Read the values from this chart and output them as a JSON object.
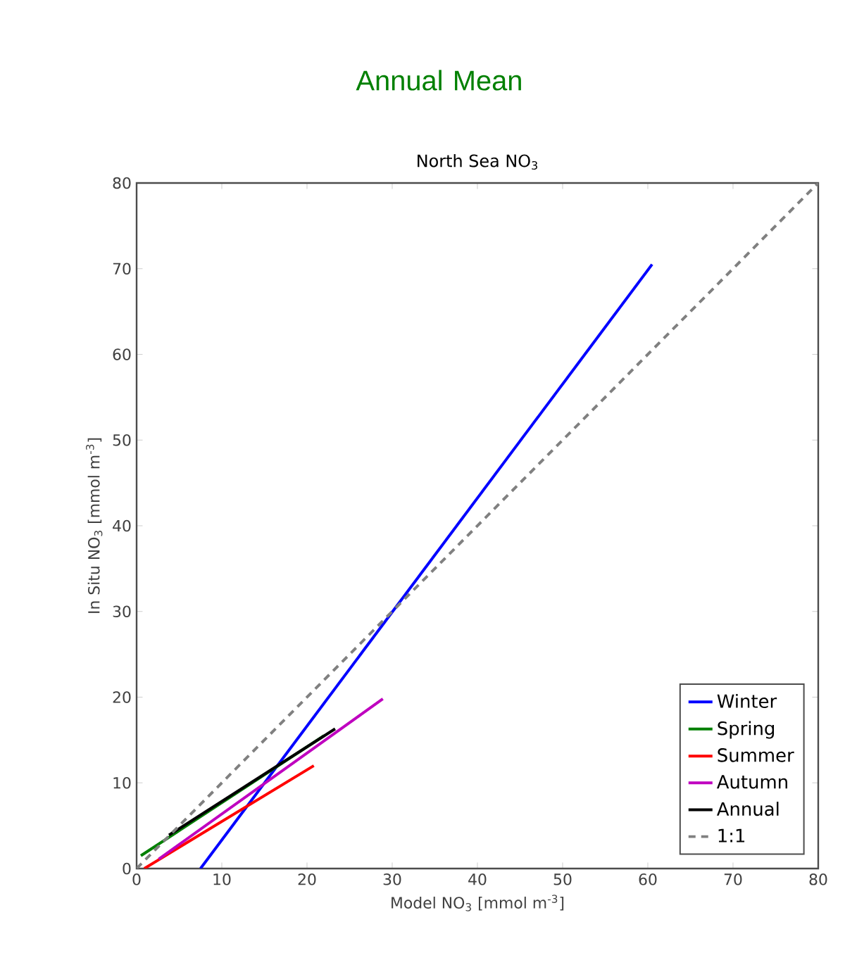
{
  "chart_data": {
    "type": "line",
    "title": "Annual Mean",
    "subtitle": "North Sea NO$_{3}$",
    "xlabel": "Model NO$_{3}$ [mmol m$^{-3}$]",
    "ylabel": "In Situ NO$_{3}$ [mmol m$^{-3}$]",
    "xlim": [
      0,
      80
    ],
    "ylim": [
      0,
      80
    ],
    "xticks": [
      0,
      10,
      20,
      30,
      40,
      50,
      60,
      70,
      80
    ],
    "yticks": [
      0,
      10,
      20,
      30,
      40,
      50,
      60,
      70,
      80
    ],
    "grid": false,
    "legend": "bottom right",
    "marker": "none",
    "series": [
      {
        "name": "Winter",
        "color": "#0000ff",
        "x": [
          7.5,
          60.5
        ],
        "values": [
          0,
          70.5
        ]
      },
      {
        "name": "Spring",
        "color": "#008000",
        "x": [
          0.5,
          22
        ],
        "values": [
          1.5,
          15.5
        ]
      },
      {
        "name": "Summer",
        "color": "#ff0000",
        "x": [
          0.9,
          20.8
        ],
        "values": [
          0,
          12
        ]
      },
      {
        "name": "Autumn",
        "color": "#bf00bf",
        "x": [
          2.6,
          28.9
        ],
        "values": [
          1.1,
          19.8
        ]
      },
      {
        "name": "Annual",
        "color": "#000000",
        "x": [
          3.8,
          23.3
        ],
        "values": [
          3.9,
          16.3
        ]
      },
      {
        "name": "1:1",
        "color": "#808080",
        "line_style": "dashed",
        "x": [
          0,
          80
        ],
        "values": [
          0,
          80
        ]
      }
    ]
  }
}
